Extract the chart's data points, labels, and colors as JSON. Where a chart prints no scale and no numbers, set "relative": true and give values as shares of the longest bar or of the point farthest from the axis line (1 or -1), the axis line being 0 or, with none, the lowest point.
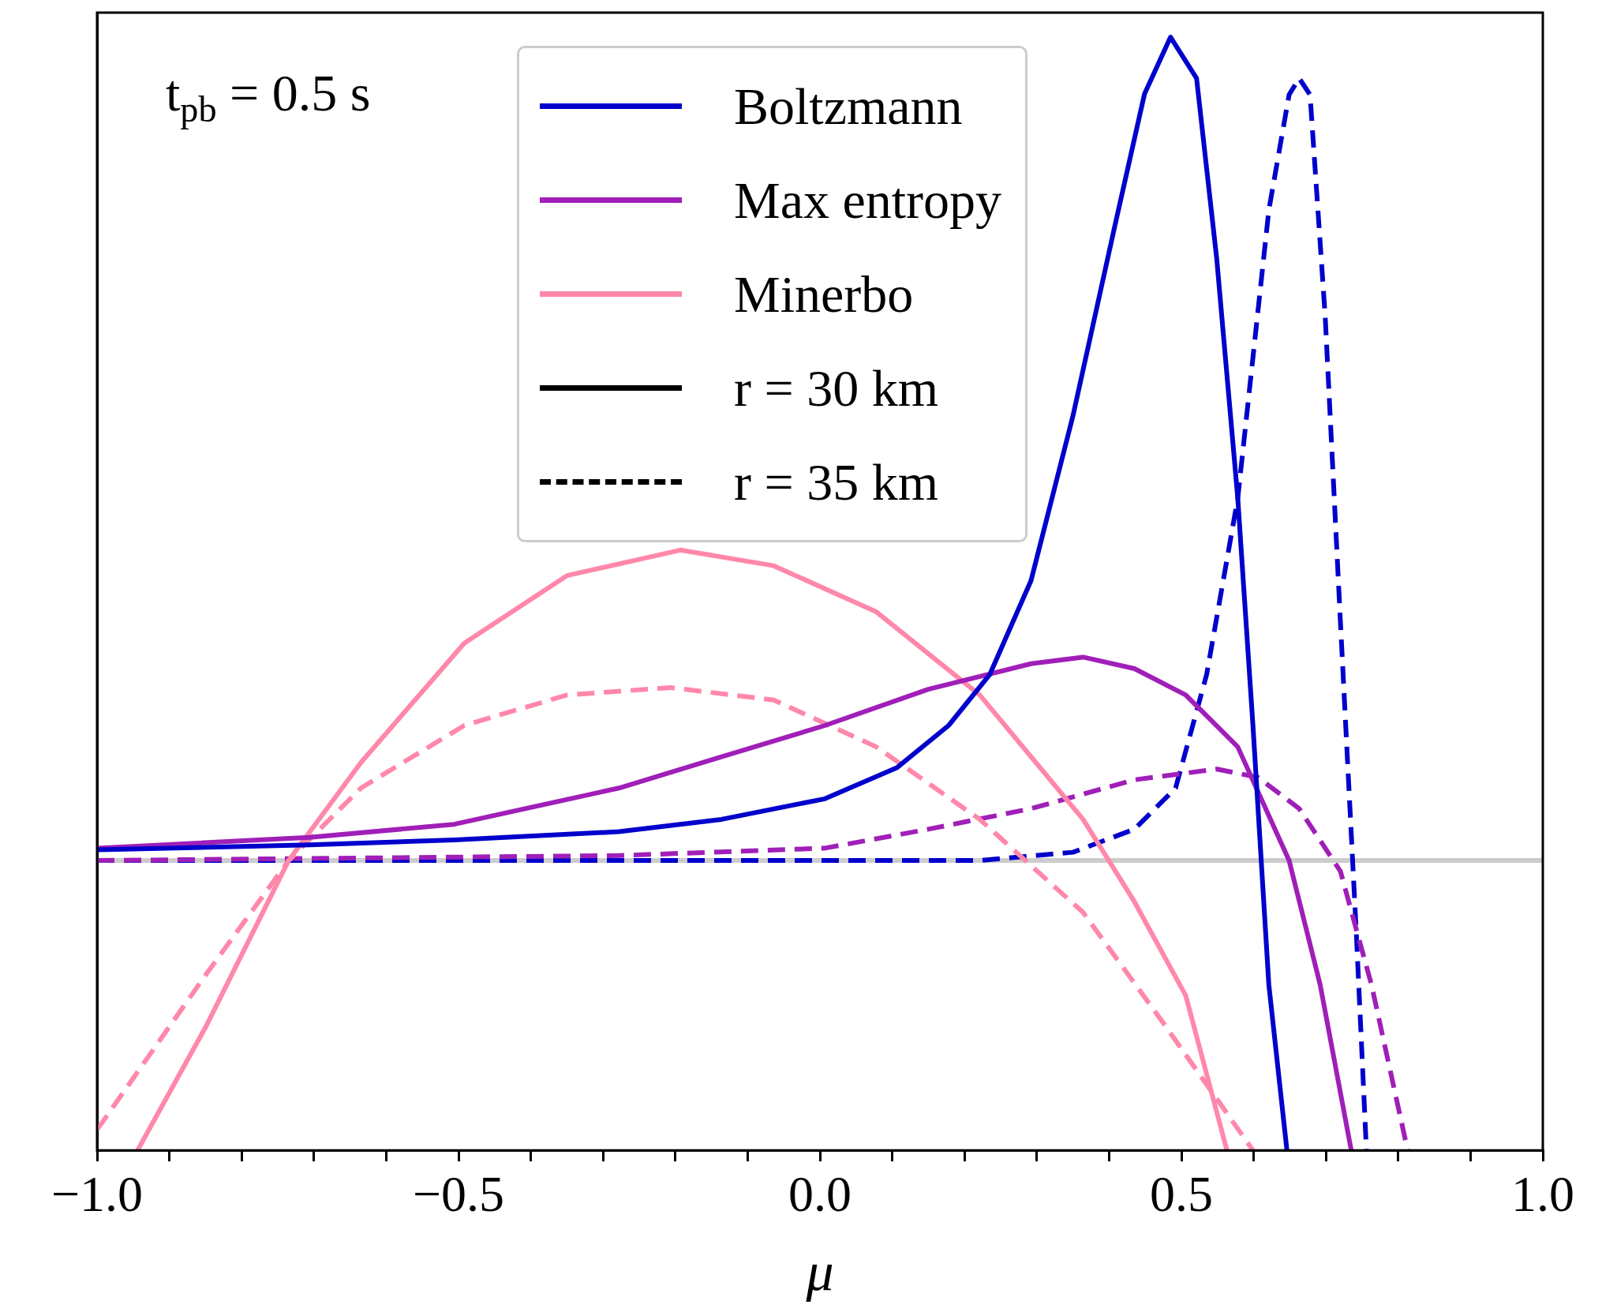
{
  "chart_data": {
    "type": "line",
    "relative": true,
    "xlabel": "μ",
    "annotations": [
      "t$_{pb}$ = 0.5 s"
    ],
    "xlim": [
      -1,
      1
    ],
    "xticks": [
      {
        "value": -1,
        "label": "−1.0"
      },
      {
        "value": -0.9,
        "label": null
      },
      {
        "value": -0.8,
        "label": null
      },
      {
        "value": -0.7,
        "label": null
      },
      {
        "value": -0.6,
        "label": null
      },
      {
        "value": -0.5,
        "label": "−0.5"
      },
      {
        "value": -0.4,
        "label": null
      },
      {
        "value": -0.3,
        "label": null
      },
      {
        "value": -0.2,
        "label": null
      },
      {
        "value": -0.1,
        "label": null
      },
      {
        "value": 0,
        "label": "0.0"
      },
      {
        "value": 0.1,
        "label": null
      },
      {
        "value": 0.2,
        "label": null
      },
      {
        "value": 0.3,
        "label": null
      },
      {
        "value": 0.4,
        "label": null
      },
      {
        "value": 0.5,
        "label": "0.5"
      },
      {
        "value": 0.6,
        "label": null
      },
      {
        "value": 0.7,
        "label": null
      },
      {
        "value": 0.8,
        "label": null
      },
      {
        "value": 0.9,
        "label": null
      },
      {
        "value": 1,
        "label": "1.0"
      }
    ],
    "ref_lines": [
      {
        "axis": "y",
        "value": 0,
        "color": "#cccccc"
      }
    ],
    "legend": "top",
    "grid": false,
    "marker": "none",
    "series": [
      {
        "name": "Boltzmann",
        "color": "#0000cc",
        "line_style": "solid",
        "x": [
          -1,
          -0.706,
          -0.506,
          -0.278,
          -0.136,
          0.007,
          0.107,
          0.178,
          0.235,
          0.292,
          0.35,
          0.407,
          0.449,
          0.485,
          0.521,
          0.549,
          0.578,
          0.599,
          0.621,
          0.646
        ],
        "values": [
          0.013,
          0.019,
          0.025,
          0.035,
          0.05,
          0.075,
          0.113,
          0.164,
          0.226,
          0.34,
          0.54,
          0.767,
          0.931,
          1.0,
          0.95,
          0.73,
          0.44,
          0.164,
          -0.151,
          -0.352
        ]
      },
      {
        "name": "Max entropy",
        "color": "#a01fb8",
        "line_style": "solid",
        "x": [
          -1,
          -0.706,
          -0.506,
          -0.278,
          -0.136,
          0.007,
          0.15,
          0.292,
          0.364,
          0.435,
          0.506,
          0.578,
          0.649,
          0.692,
          0.735
        ],
        "values": [
          0.015,
          0.028,
          0.044,
          0.088,
          0.126,
          0.164,
          0.208,
          0.239,
          0.247,
          0.233,
          0.201,
          0.138,
          0,
          -0.151,
          -0.352
        ]
      },
      {
        "name": "Minerbo",
        "color": "#ff88aa",
        "line_style": "solid",
        "x": [
          -0.944,
          -0.849,
          -0.735,
          -0.635,
          -0.492,
          -0.35,
          -0.193,
          -0.064,
          0.078,
          0.221,
          0.364,
          0.435,
          0.506,
          0.563
        ],
        "values": [
          -0.352,
          -0.201,
          0,
          0.119,
          0.264,
          0.346,
          0.377,
          0.358,
          0.302,
          0.201,
          0.05,
          -0.05,
          -0.164,
          -0.352
        ]
      },
      {
        "color": "#ff88aa",
        "line_style": "dashed",
        "x": [
          -1,
          -0.849,
          -0.735,
          -0.635,
          -0.492,
          -0.35,
          -0.207,
          -0.064,
          0.078,
          0.221,
          0.364,
          0.478,
          0.599
        ],
        "values": [
          -0.327,
          -0.138,
          0,
          0.088,
          0.164,
          0.201,
          0.21,
          0.195,
          0.138,
          0.05,
          -0.063,
          -0.201,
          -0.352
        ]
      },
      {
        "color": "#a01fb8",
        "line_style": "dashed",
        "x": [
          -1,
          -0.278,
          0.007,
          0.15,
          0.292,
          0.435,
          0.549,
          0.606,
          0.663,
          0.72,
          0.763,
          0.813
        ],
        "values": [
          0,
          0.006,
          0.015,
          0.038,
          0.063,
          0.098,
          0.111,
          0.101,
          0.063,
          -0.013,
          -0.151,
          -0.352
        ]
      },
      {
        "color": "#0000cc",
        "line_style": "dashed",
        "x": [
          -1,
          0.221,
          0.35,
          0.435,
          0.492,
          0.535,
          0.578,
          0.621,
          0.649,
          0.663,
          0.678,
          0.699,
          0.72,
          0.742,
          0.756
        ],
        "values": [
          0,
          0,
          0.01,
          0.038,
          0.088,
          0.226,
          0.44,
          0.79,
          0.93,
          0.95,
          0.93,
          0.66,
          0.29,
          -0.088,
          -0.352
        ]
      },
      {
        "name": "r = 30 km",
        "color": "#000000",
        "line_style": "solid"
      },
      {
        "name": "r = 35 km",
        "color": "#000000",
        "line_style": "dashed"
      }
    ]
  }
}
